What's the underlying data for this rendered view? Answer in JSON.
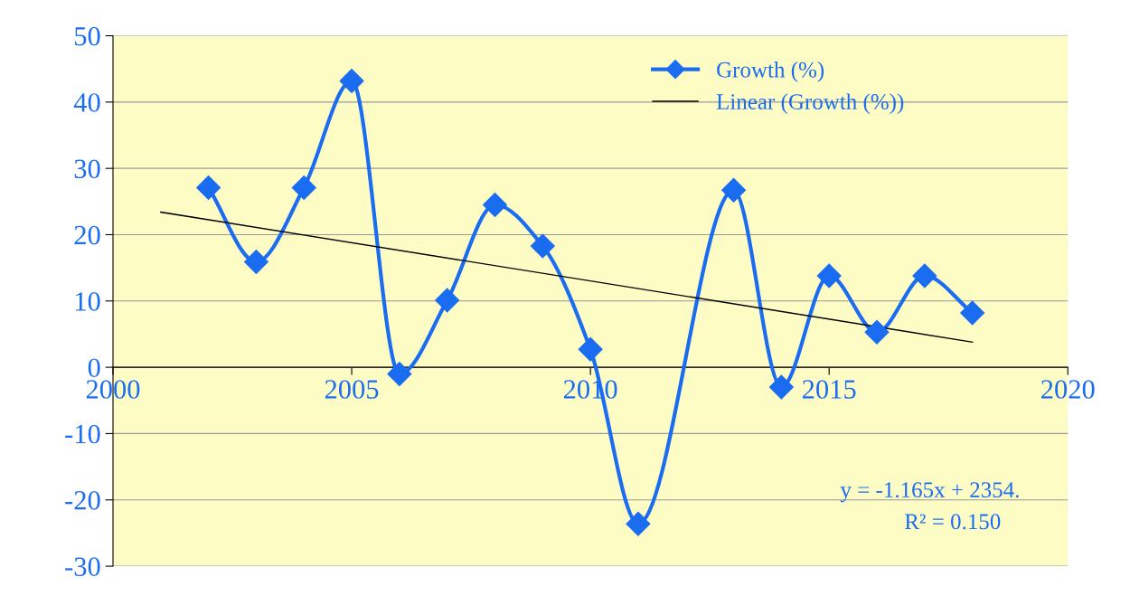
{
  "chart_data": {
    "type": "line",
    "series": [
      {
        "name": "Growth (%)",
        "color": "#1a6cf0",
        "marker": "diamond",
        "x": [
          2002,
          2003,
          2004,
          2005,
          2006,
          2007,
          2008,
          2009,
          2010,
          2011,
          2013,
          2014,
          2015,
          2016,
          2017,
          2018
        ],
        "values": [
          27.1,
          15.9,
          27.1,
          43.2,
          -1.0,
          10.1,
          24.5,
          18.3,
          2.7,
          -23.6,
          26.7,
          -3.0,
          13.8,
          5.3,
          13.8,
          8.2
        ]
      },
      {
        "name": "Linear (Growth (%))",
        "color": "#000000",
        "marker": "none",
        "x": [
          2001,
          2018
        ],
        "values": [
          23.4,
          3.8
        ]
      }
    ],
    "xlim": [
      2000,
      2020
    ],
    "xticks": [
      2000,
      2005,
      2010,
      2015,
      2020
    ],
    "ylim": [
      -30,
      50
    ],
    "yticks": [
      -30,
      -20,
      -10,
      0,
      10,
      20,
      30,
      40,
      50
    ],
    "grid": "y",
    "legend": "top right",
    "annotations": [
      "y = -1.165x + 2354.",
      "R² = 0.150"
    ]
  }
}
